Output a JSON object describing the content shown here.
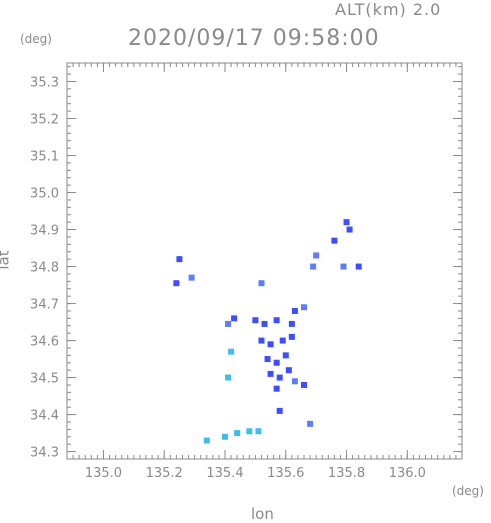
{
  "header": {
    "alt_label": "ALT(km)  2.0",
    "timestamp": "2020/09/17 09:58:00"
  },
  "chart_data": {
    "type": "heatmap",
    "title": "2020/09/17 09:58:00",
    "subtitle": "ALT(km)  2.0",
    "xlabel": "lon",
    "ylabel": "lat",
    "x_unit": "(deg)",
    "y_unit": "(deg)",
    "xlim": [
      134.88,
      136.18
    ],
    "ylim": [
      34.28,
      35.35
    ],
    "x_ticks": [
      "135.0",
      "135.2",
      "135.4",
      "135.6",
      "135.8",
      "136.0"
    ],
    "x_tick_values": [
      135.0,
      135.2,
      135.4,
      135.6,
      135.8,
      136.0
    ],
    "y_ticks": [
      "35.3",
      "35.2",
      "35.1",
      "35.0",
      "34.9",
      "34.8",
      "34.7",
      "34.6",
      "34.5",
      "34.4",
      "34.3"
    ],
    "y_tick_values": [
      35.3,
      35.2,
      35.1,
      35.0,
      34.9,
      34.8,
      34.7,
      34.6,
      34.5,
      34.4,
      34.3
    ],
    "grid": false,
    "colors": {
      "axis": "#8a8a8a",
      "echo_strong": "#3344ff",
      "echo_mid": "#5577ff",
      "echo_weak": "#33bbee"
    },
    "cells": [
      {
        "lon": 135.25,
        "lat": 34.82,
        "level": "strong"
      },
      {
        "lon": 135.24,
        "lat": 34.755,
        "level": "strong"
      },
      {
        "lon": 135.29,
        "lat": 34.77,
        "level": "mid"
      },
      {
        "lon": 135.8,
        "lat": 34.92,
        "level": "strong"
      },
      {
        "lon": 135.81,
        "lat": 34.9,
        "level": "strong"
      },
      {
        "lon": 135.76,
        "lat": 34.87,
        "level": "strong"
      },
      {
        "lon": 135.7,
        "lat": 34.83,
        "level": "mid"
      },
      {
        "lon": 135.69,
        "lat": 34.8,
        "level": "mid"
      },
      {
        "lon": 135.84,
        "lat": 34.8,
        "level": "strong"
      },
      {
        "lon": 135.79,
        "lat": 34.8,
        "level": "mid"
      },
      {
        "lon": 135.52,
        "lat": 34.755,
        "level": "mid"
      },
      {
        "lon": 135.43,
        "lat": 34.66,
        "level": "strong"
      },
      {
        "lon": 135.5,
        "lat": 34.655,
        "level": "strong"
      },
      {
        "lon": 135.53,
        "lat": 34.645,
        "level": "strong"
      },
      {
        "lon": 135.57,
        "lat": 34.655,
        "level": "strong"
      },
      {
        "lon": 135.62,
        "lat": 34.645,
        "level": "strong"
      },
      {
        "lon": 135.63,
        "lat": 34.68,
        "level": "strong"
      },
      {
        "lon": 135.66,
        "lat": 34.69,
        "level": "mid"
      },
      {
        "lon": 135.41,
        "lat": 34.645,
        "level": "mid"
      },
      {
        "lon": 135.52,
        "lat": 34.6,
        "level": "strong"
      },
      {
        "lon": 135.55,
        "lat": 34.59,
        "level": "strong"
      },
      {
        "lon": 135.59,
        "lat": 34.6,
        "level": "strong"
      },
      {
        "lon": 135.62,
        "lat": 34.61,
        "level": "strong"
      },
      {
        "lon": 135.42,
        "lat": 34.57,
        "level": "weak"
      },
      {
        "lon": 135.54,
        "lat": 34.55,
        "level": "strong"
      },
      {
        "lon": 135.57,
        "lat": 34.54,
        "level": "strong"
      },
      {
        "lon": 135.6,
        "lat": 34.56,
        "level": "strong"
      },
      {
        "lon": 135.55,
        "lat": 34.51,
        "level": "strong"
      },
      {
        "lon": 135.58,
        "lat": 34.5,
        "level": "strong"
      },
      {
        "lon": 135.61,
        "lat": 34.52,
        "level": "strong"
      },
      {
        "lon": 135.63,
        "lat": 34.49,
        "level": "mid"
      },
      {
        "lon": 135.66,
        "lat": 34.48,
        "level": "strong"
      },
      {
        "lon": 135.57,
        "lat": 34.47,
        "level": "strong"
      },
      {
        "lon": 135.41,
        "lat": 34.5,
        "level": "weak"
      },
      {
        "lon": 135.58,
        "lat": 34.41,
        "level": "strong"
      },
      {
        "lon": 135.68,
        "lat": 34.375,
        "level": "mid"
      },
      {
        "lon": 135.34,
        "lat": 34.33,
        "level": "weak"
      },
      {
        "lon": 135.4,
        "lat": 34.34,
        "level": "weak"
      },
      {
        "lon": 135.44,
        "lat": 34.35,
        "level": "weak"
      },
      {
        "lon": 135.48,
        "lat": 34.355,
        "level": "weak"
      },
      {
        "lon": 135.51,
        "lat": 34.355,
        "level": "weak"
      }
    ]
  }
}
